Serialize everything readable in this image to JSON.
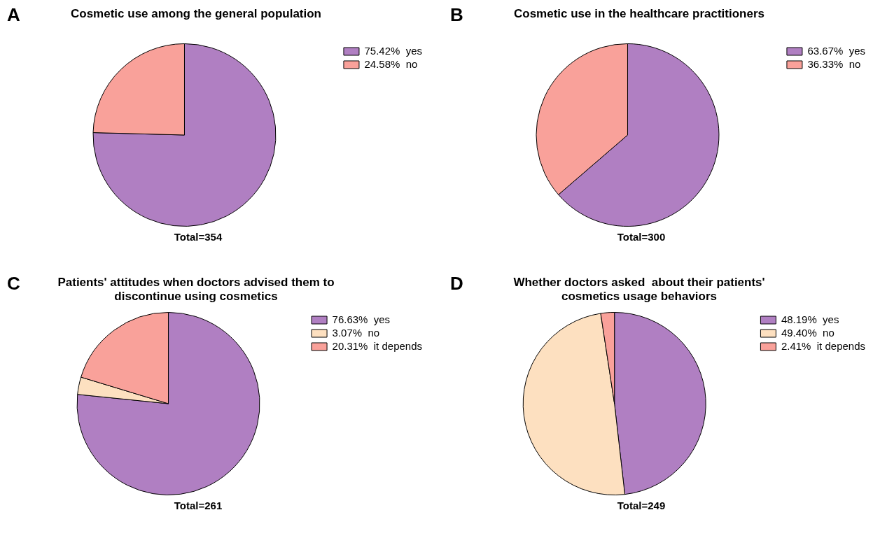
{
  "chart_data": [
    {
      "type": "pie",
      "title": "Cosmetic use among the general population",
      "categories": [
        "yes",
        "no"
      ],
      "values": [
        75.42,
        24.58
      ],
      "value_labels": [
        "75.42%",
        "24.58%"
      ],
      "colors": [
        "#b07fc2",
        "#f9a19a"
      ],
      "legend": "top right",
      "annotations": [
        "A",
        "Total=354"
      ]
    },
    {
      "type": "pie",
      "title": "Cosmetic use in the healthcare practitioners",
      "categories": [
        "yes",
        "no"
      ],
      "values": [
        63.67,
        36.33
      ],
      "value_labels": [
        "63.67%",
        "36.33%"
      ],
      "colors": [
        "#b07fc2",
        "#f9a19a"
      ],
      "legend": "top right",
      "annotations": [
        "B",
        "Total=300"
      ]
    },
    {
      "type": "pie",
      "title": "Patients' attitudes when doctors advised them to discontinue using cosmetics",
      "categories": [
        "yes",
        "no",
        "it depends"
      ],
      "values": [
        76.63,
        3.07,
        20.31
      ],
      "value_labels": [
        "76.63%",
        "3.07%",
        "20.31%"
      ],
      "colors": [
        "#b07fc2",
        "#fde0c0",
        "#f9a19a"
      ],
      "legend": "top right",
      "annotations": [
        "C",
        "Total=261"
      ]
    },
    {
      "type": "pie",
      "title": "Whether doctors asked  about their patients' cosmetics usage behaviors",
      "categories": [
        "yes",
        "no",
        "it depends"
      ],
      "values": [
        48.19,
        49.4,
        2.41
      ],
      "value_labels": [
        "48.19%",
        "49.40%",
        "2.41%"
      ],
      "colors": [
        "#b07fc2",
        "#fde0c0",
        "#f9a19a"
      ],
      "legend": "top right",
      "annotations": [
        "D",
        "Total=249"
      ]
    }
  ]
}
